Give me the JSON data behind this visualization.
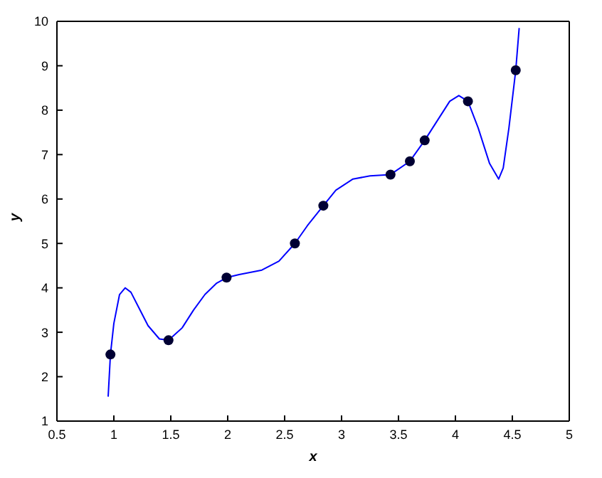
{
  "chart_data": {
    "type": "line",
    "xlabel": "x",
    "ylabel": "y",
    "xlim": [
      0.5,
      5
    ],
    "xticks": [
      0.5,
      1,
      1.5,
      2,
      2.5,
      3,
      3.5,
      4,
      4.5,
      5
    ],
    "ylim": [
      1,
      10
    ],
    "yticks": [
      1,
      2,
      3,
      4,
      5,
      6,
      7,
      8,
      9,
      10
    ],
    "grid": false,
    "legend": false,
    "series": [
      {
        "type": "line",
        "color": "#0000ff",
        "marker": "none",
        "line_style": "solid",
        "x": [
          0.95,
          0.97,
          1.0,
          1.05,
          1.1,
          1.15,
          1.2,
          1.3,
          1.4,
          1.48,
          1.6,
          1.7,
          1.8,
          1.9,
          1.99,
          2.1,
          2.3,
          2.45,
          2.59,
          2.7,
          2.84,
          2.95,
          3.1,
          3.25,
          3.43,
          3.6,
          3.73,
          3.85,
          3.95,
          4.03,
          4.11,
          4.2,
          4.3,
          4.38,
          4.42,
          4.47,
          4.53,
          4.56
        ],
        "values": [
          1.55,
          2.5,
          3.2,
          3.85,
          4.0,
          3.9,
          3.65,
          3.15,
          2.85,
          2.82,
          3.1,
          3.5,
          3.85,
          4.1,
          4.23,
          4.3,
          4.4,
          4.6,
          5.0,
          5.4,
          5.85,
          6.2,
          6.45,
          6.52,
          6.55,
          6.85,
          7.32,
          7.8,
          8.2,
          8.33,
          8.2,
          7.6,
          6.8,
          6.45,
          6.7,
          7.6,
          8.9,
          9.85
        ]
      },
      {
        "type": "scatter",
        "color": "#000033",
        "marker": "circle",
        "x": [
          0.97,
          1.48,
          1.99,
          2.59,
          2.84,
          3.43,
          3.6,
          3.73,
          4.11,
          4.53
        ],
        "values": [
          2.5,
          2.82,
          4.23,
          5.0,
          5.85,
          6.55,
          6.85,
          7.32,
          8.2,
          8.9
        ]
      }
    ]
  }
}
